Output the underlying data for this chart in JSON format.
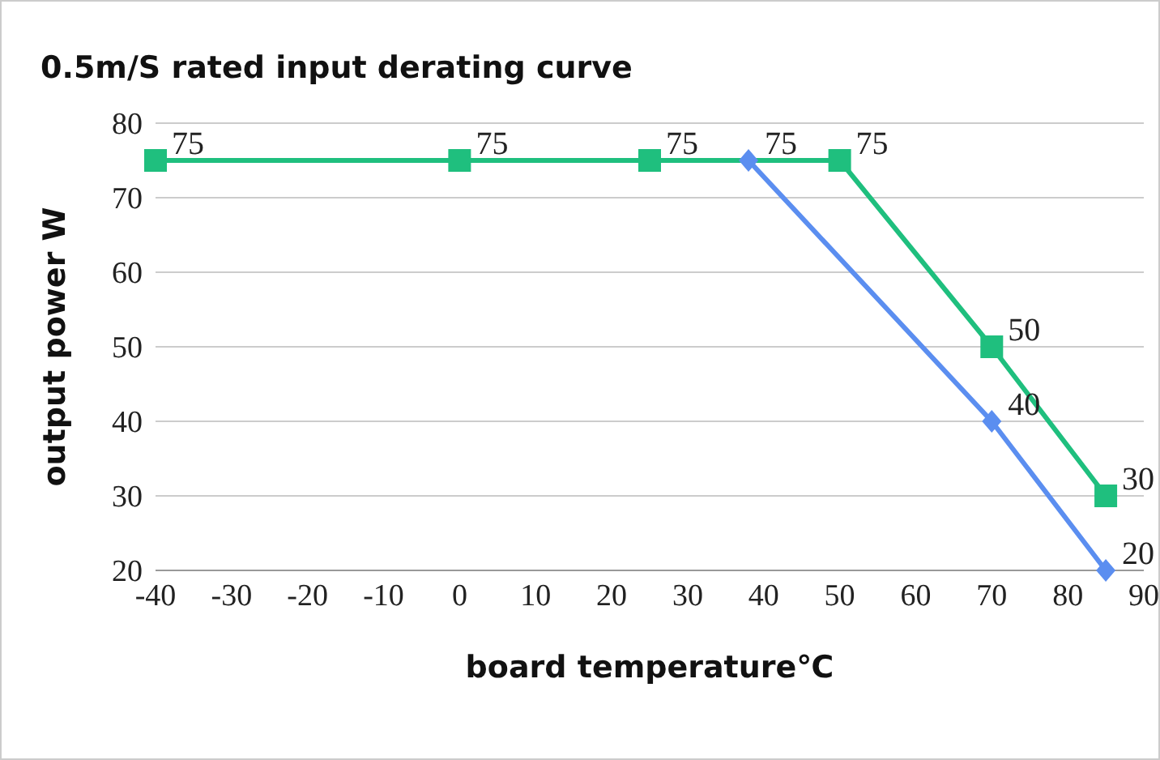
{
  "chart_data": {
    "type": "line",
    "title": "0.5m/S rated input derating curve",
    "xlabel": "board temperature℃",
    "ylabel": "output power W",
    "series": [
      {
        "color": "#5b8ef0",
        "marker": "diamond",
        "x": [
          38,
          70,
          85
        ],
        "values": [
          75,
          40,
          20
        ]
      },
      {
        "color": "#1fbf7e",
        "marker": "square",
        "x": [
          -40,
          0,
          25,
          50,
          70,
          85
        ],
        "values": [
          75,
          75,
          75,
          75,
          50,
          30
        ]
      }
    ],
    "xlim": [
      -40,
      90
    ],
    "xticks": [
      -40,
      -30,
      -20,
      -10,
      0,
      10,
      20,
      30,
      40,
      50,
      60,
      70,
      80,
      90
    ],
    "ylim": [
      20,
      80
    ],
    "yticks": [
      20,
      30,
      40,
      50,
      60,
      70,
      80
    ],
    "grid": "y",
    "data_labels": true
  }
}
